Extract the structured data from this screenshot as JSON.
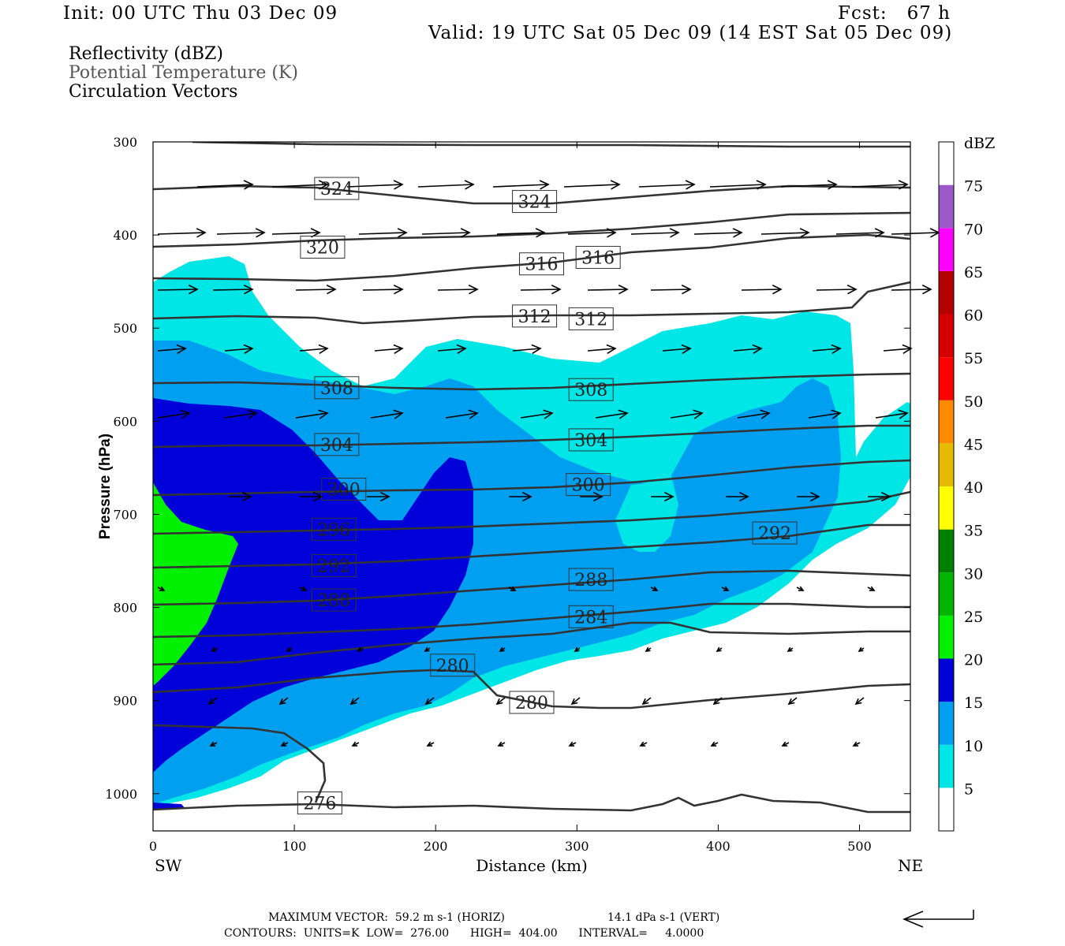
{
  "header": {
    "init": "Init: 00 UTC Thu 03 Dec 09",
    "fcst": "Fcst:   67 h",
    "valid": "Valid: 19 UTC Sat 05 Dec 09 (14 EST Sat 05 Dec 09)"
  },
  "legend": {
    "field1": "Reflectivity (dBZ)",
    "field2": "Potential Temperature (K)",
    "field3": "Circulation Vectors"
  },
  "footer": {
    "max_vector": "MAXIMUM VECTOR:  59.2 m s-1 (HORIZ)",
    "max_vector_vert": "14.1 dPa s-1 (VERT)",
    "contours": "CONTOURS:  UNITS=K  LOW=  276.00      HIGH=  404.00      INTERVAL=     4.0000"
  },
  "colors": {
    "c5": "#00e5e5",
    "c10": "#009ff0",
    "c15": "#0000d8",
    "c20": "#00f000",
    "contour": "#333333"
  },
  "chart_data": {
    "type": "heatmap",
    "xlabel": "Distance (km)",
    "ylabel": "Pressure (hPa)",
    "x_ticks": [
      0,
      100,
      200,
      300,
      400,
      500
    ],
    "y_ticks": [
      300,
      400,
      500,
      600,
      700,
      800,
      900,
      1000
    ],
    "xlim": [
      0,
      536
    ],
    "ylim": [
      1040,
      300
    ],
    "x_end_labels": {
      "left": "SW",
      "right": "NE"
    },
    "colorbar": {
      "units": "dBZ",
      "levels": [
        5,
        10,
        15,
        20,
        25,
        30,
        35,
        40,
        45,
        50,
        55,
        60,
        65,
        70,
        75
      ],
      "colors": [
        "#ffffff",
        "#00e5e5",
        "#009ff0",
        "#0000d8",
        "#00f000",
        "#00b400",
        "#008000",
        "#ffff00",
        "#e6bc00",
        "#ff8c00",
        "#ff0000",
        "#d40000",
        "#b40000",
        "#ff00ff",
        "#9b59c8",
        "#ffffff"
      ]
    },
    "theta_contour_labels": [
      {
        "value": "324",
        "x": 130,
        "p": 350
      },
      {
        "value": "324",
        "x": 270,
        "p": 364
      },
      {
        "value": "320",
        "x": 120,
        "p": 413
      },
      {
        "value": "316",
        "x": 275,
        "p": 431
      },
      {
        "value": "316",
        "x": 315,
        "p": 424
      },
      {
        "value": "312",
        "x": 270,
        "p": 487
      },
      {
        "value": "312",
        "x": 310,
        "p": 490
      },
      {
        "value": "308",
        "x": 130,
        "p": 564
      },
      {
        "value": "308",
        "x": 310,
        "p": 566
      },
      {
        "value": "304",
        "x": 130,
        "p": 625
      },
      {
        "value": "304",
        "x": 310,
        "p": 620
      },
      {
        "value": "300",
        "x": 135,
        "p": 673
      },
      {
        "value": "300",
        "x": 308,
        "p": 668
      },
      {
        "value": "296",
        "x": 128,
        "p": 716
      },
      {
        "value": "292",
        "x": 128,
        "p": 755
      },
      {
        "value": "292",
        "x": 440,
        "p": 720
      },
      {
        "value": "288",
        "x": 128,
        "p": 792
      },
      {
        "value": "288",
        "x": 310,
        "p": 770
      },
      {
        "value": "284",
        "x": 310,
        "p": 810
      },
      {
        "value": "280",
        "x": 212,
        "p": 862
      },
      {
        "value": "280",
        "x": 268,
        "p": 902
      },
      {
        "value": "276",
        "x": 118,
        "p": 1010
      }
    ]
  }
}
